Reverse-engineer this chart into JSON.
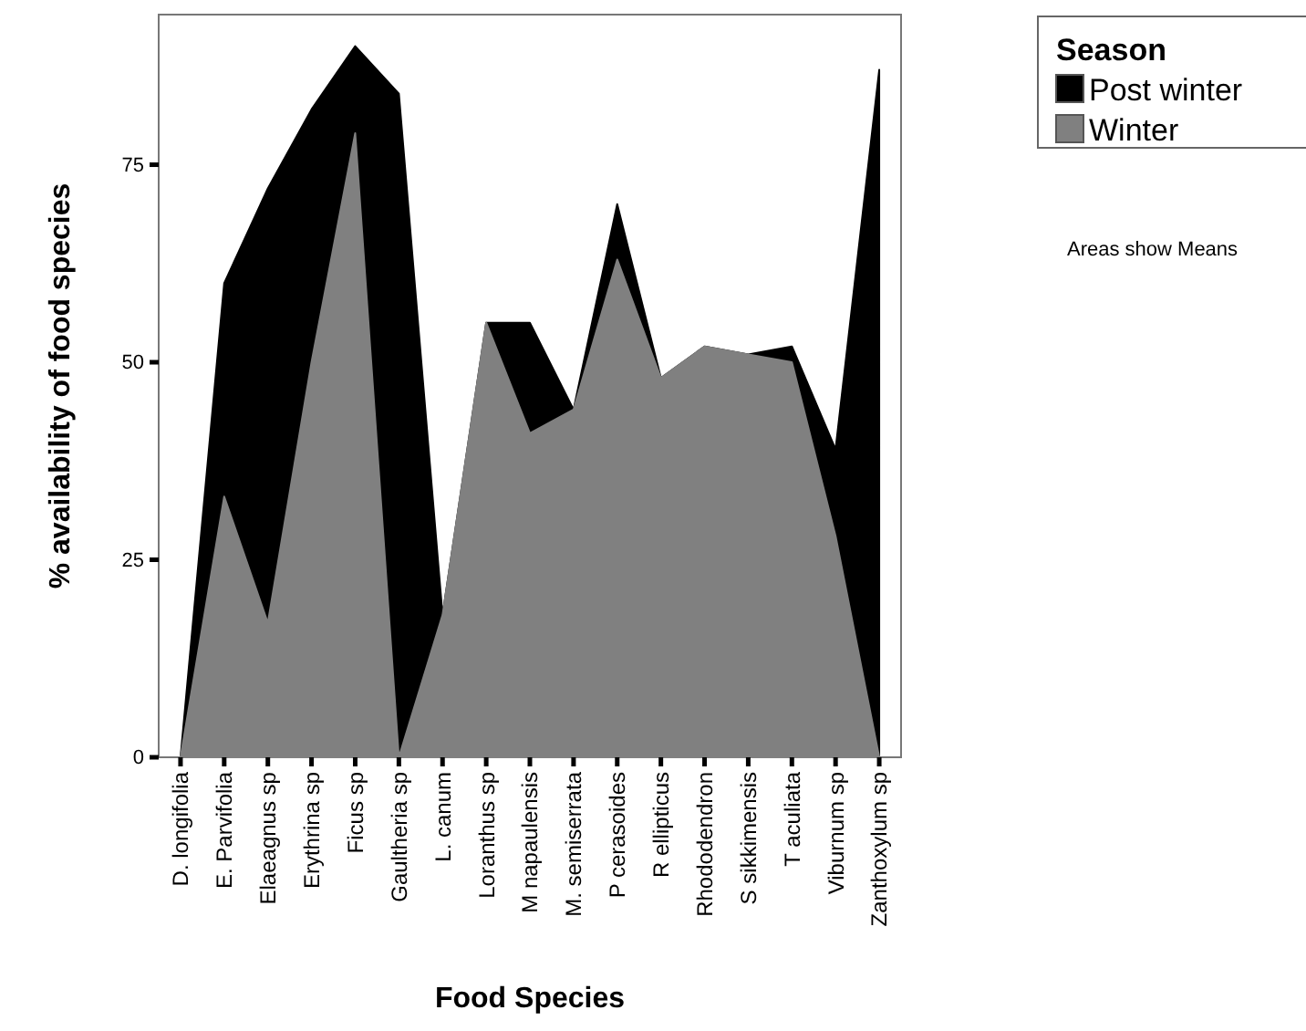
{
  "chart_data": {
    "type": "area",
    "stacked": true,
    "xlabel": "Food Species",
    "ylabel": "% availability of food species",
    "legend_title": "Season",
    "legend": "top right",
    "annotations": [
      "Areas show Means"
    ],
    "categories": [
      "D. longifolia",
      "E. Parvifolia",
      "Elaeagnus sp",
      "Erythrina sp",
      "Ficus sp",
      "Gaultheria sp",
      "L. canum",
      "Loranthus sp",
      "M napaulensis",
      "M. semiserrata",
      "P cerasoides",
      "R ellipticus",
      "Rhododendron",
      "S sikkimensis",
      "T aculiata",
      "Viburnum sp",
      "Zanthoxylum sp"
    ],
    "series": [
      {
        "name": "Winter",
        "color": "#808080",
        "values": [
          0,
          33,
          17,
          50,
          79,
          0,
          18,
          55,
          41,
          44,
          63,
          48,
          52,
          51,
          50,
          28,
          0
        ]
      },
      {
        "name": "Post winter",
        "color": "#000000",
        "values": [
          0,
          27,
          55,
          32,
          11,
          84,
          0,
          0,
          14,
          0,
          7,
          0,
          0,
          0,
          2,
          11,
          87
        ]
      }
    ],
    "ylim": [
      0,
      94
    ],
    "yticks": [
      0,
      25,
      50,
      75
    ],
    "grid": false
  }
}
